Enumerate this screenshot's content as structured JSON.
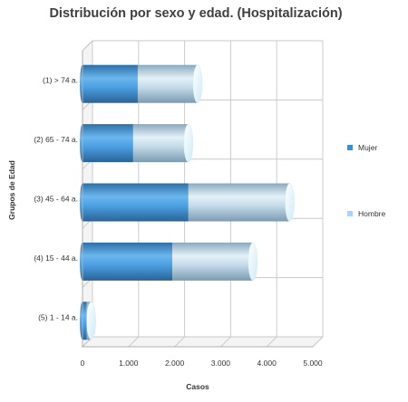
{
  "chart_data": {
    "type": "bar",
    "orientation": "horizontal",
    "stacked": true,
    "style": "3d-cylinder",
    "title": "Distribución por sexo y edad. (Hospitalización)",
    "xlabel": "Casos",
    "ylabel": "Grupos de Edad",
    "categories": [
      "(1) > 74 a.",
      "(2) 65 - 74 a.",
      "(3) 45 - 64 a.",
      "(4) 15 - 44 a.",
      "(5) 1 - 14 a."
    ],
    "series": [
      {
        "name": "Mujer",
        "values": [
          1200,
          1100,
          2300,
          1950,
          90
        ],
        "color": "#3a8fd6"
      },
      {
        "name": "Hombre",
        "values": [
          1300,
          1200,
          2200,
          1750,
          100
        ],
        "color": "#a9d4f5"
      }
    ],
    "xlim": [
      0,
      5000
    ],
    "xticks": [
      0,
      1000,
      2000,
      3000,
      4000,
      5000
    ],
    "xtick_labels": [
      "0",
      "1.000",
      "2.000",
      "3.000",
      "4.000",
      "5.000"
    ],
    "grid": true,
    "legend_position": "right"
  }
}
